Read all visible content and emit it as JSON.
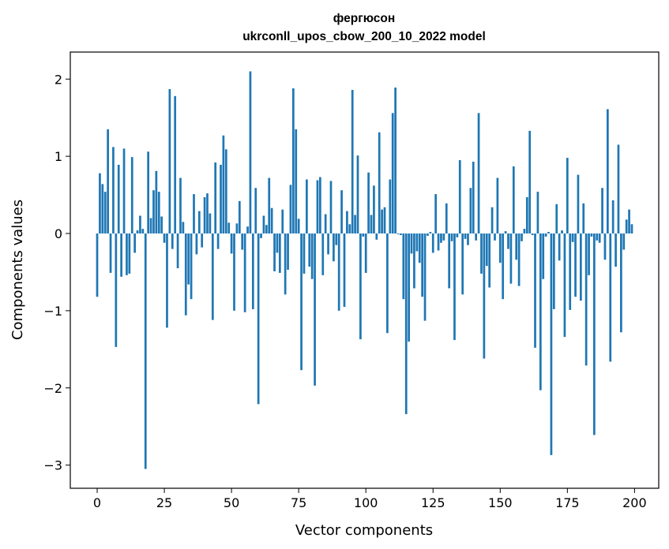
{
  "chart_data": {
    "type": "bar",
    "title": "фергюсон",
    "subtitle": "ukrconll_upos_cbow_200_10_2022 model",
    "xlabel": "Vector components",
    "ylabel": "Components values",
    "xlim": [
      -10,
      209
    ],
    "ylim": [
      -3.3,
      2.35
    ],
    "xticks": [
      0,
      25,
      50,
      75,
      100,
      125,
      150,
      175,
      200
    ],
    "xtick_labels": [
      "0",
      "25",
      "50",
      "75",
      "100",
      "125",
      "150",
      "175",
      "200"
    ],
    "yticks": [
      -3,
      -2,
      -1,
      0,
      1,
      2
    ],
    "ytick_labels": [
      "−3",
      "−2",
      "−1",
      "0",
      "1",
      "2"
    ],
    "color": "#1f77b4",
    "values": [
      -0.82,
      0.78,
      0.64,
      0.54,
      1.35,
      -0.51,
      1.12,
      -1.47,
      0.89,
      -0.56,
      1.1,
      -0.54,
      -0.52,
      0.99,
      -0.25,
      0.04,
      0.23,
      0.06,
      -3.05,
      1.06,
      0.2,
      0.56,
      0.81,
      0.54,
      0.22,
      -0.12,
      -1.22,
      1.87,
      -0.2,
      1.78,
      -0.45,
      0.72,
      0.15,
      -1.06,
      -0.66,
      -0.85,
      0.51,
      -0.27,
      0.29,
      -0.18,
      0.47,
      0.52,
      0.26,
      -1.12,
      0.92,
      -0.2,
      0.89,
      1.27,
      1.09,
      0.14,
      -0.26,
      -1.0,
      0.13,
      0.42,
      -0.21,
      -1.02,
      0.09,
      2.1,
      -0.98,
      0.59,
      -2.21,
      -0.06,
      0.23,
      0.11,
      0.72,
      0.33,
      -0.49,
      -0.25,
      -0.51,
      0.31,
      -0.79,
      -0.47,
      0.63,
      1.88,
      1.35,
      0.19,
      -1.77,
      -0.52,
      0.7,
      -0.43,
      -0.59,
      -1.97,
      0.69,
      0.73,
      -0.54,
      0.25,
      -0.27,
      0.68,
      -0.36,
      -0.15,
      -1.0,
      0.56,
      -0.95,
      0.29,
      0.12,
      1.86,
      0.24,
      1.01,
      -1.37,
      -0.04,
      -0.51,
      0.79,
      0.24,
      0.62,
      -0.08,
      1.31,
      0.31,
      0.34,
      -1.29,
      0.7,
      1.56,
      1.89,
      -0.01,
      -0.02,
      -0.85,
      -2.34,
      -1.4,
      -0.26,
      -0.71,
      -0.23,
      -0.38,
      -0.82,
      -1.13,
      -0.03,
      0.02,
      -0.25,
      0.51,
      -0.22,
      -0.12,
      -0.09,
      0.39,
      -0.71,
      -0.1,
      -1.38,
      -0.05,
      0.95,
      -0.79,
      -0.07,
      -0.15,
      0.59,
      0.93,
      -0.09,
      1.56,
      -0.52,
      -1.62,
      -0.42,
      -0.7,
      0.34,
      -0.09,
      0.72,
      -0.38,
      -0.85,
      0.03,
      -0.2,
      -0.65,
      0.87,
      -0.34,
      -0.68,
      -0.1,
      0.06,
      0.47,
      1.33,
      -0.02,
      -1.48,
      0.54,
      -2.03,
      -0.59,
      -0.04,
      0.02,
      -2.87,
      -0.98,
      0.38,
      -0.35,
      0.04,
      -1.34,
      0.98,
      -0.99,
      -0.11,
      -0.82,
      0.76,
      -0.87,
      0.39,
      -1.71,
      -0.54,
      -0.04,
      -2.61,
      -0.09,
      -0.12,
      0.59,
      -0.34,
      1.61,
      -1.66,
      0.43,
      -0.43,
      1.15,
      -1.28,
      -0.21,
      0.18,
      0.31,
      0.12
    ]
  }
}
